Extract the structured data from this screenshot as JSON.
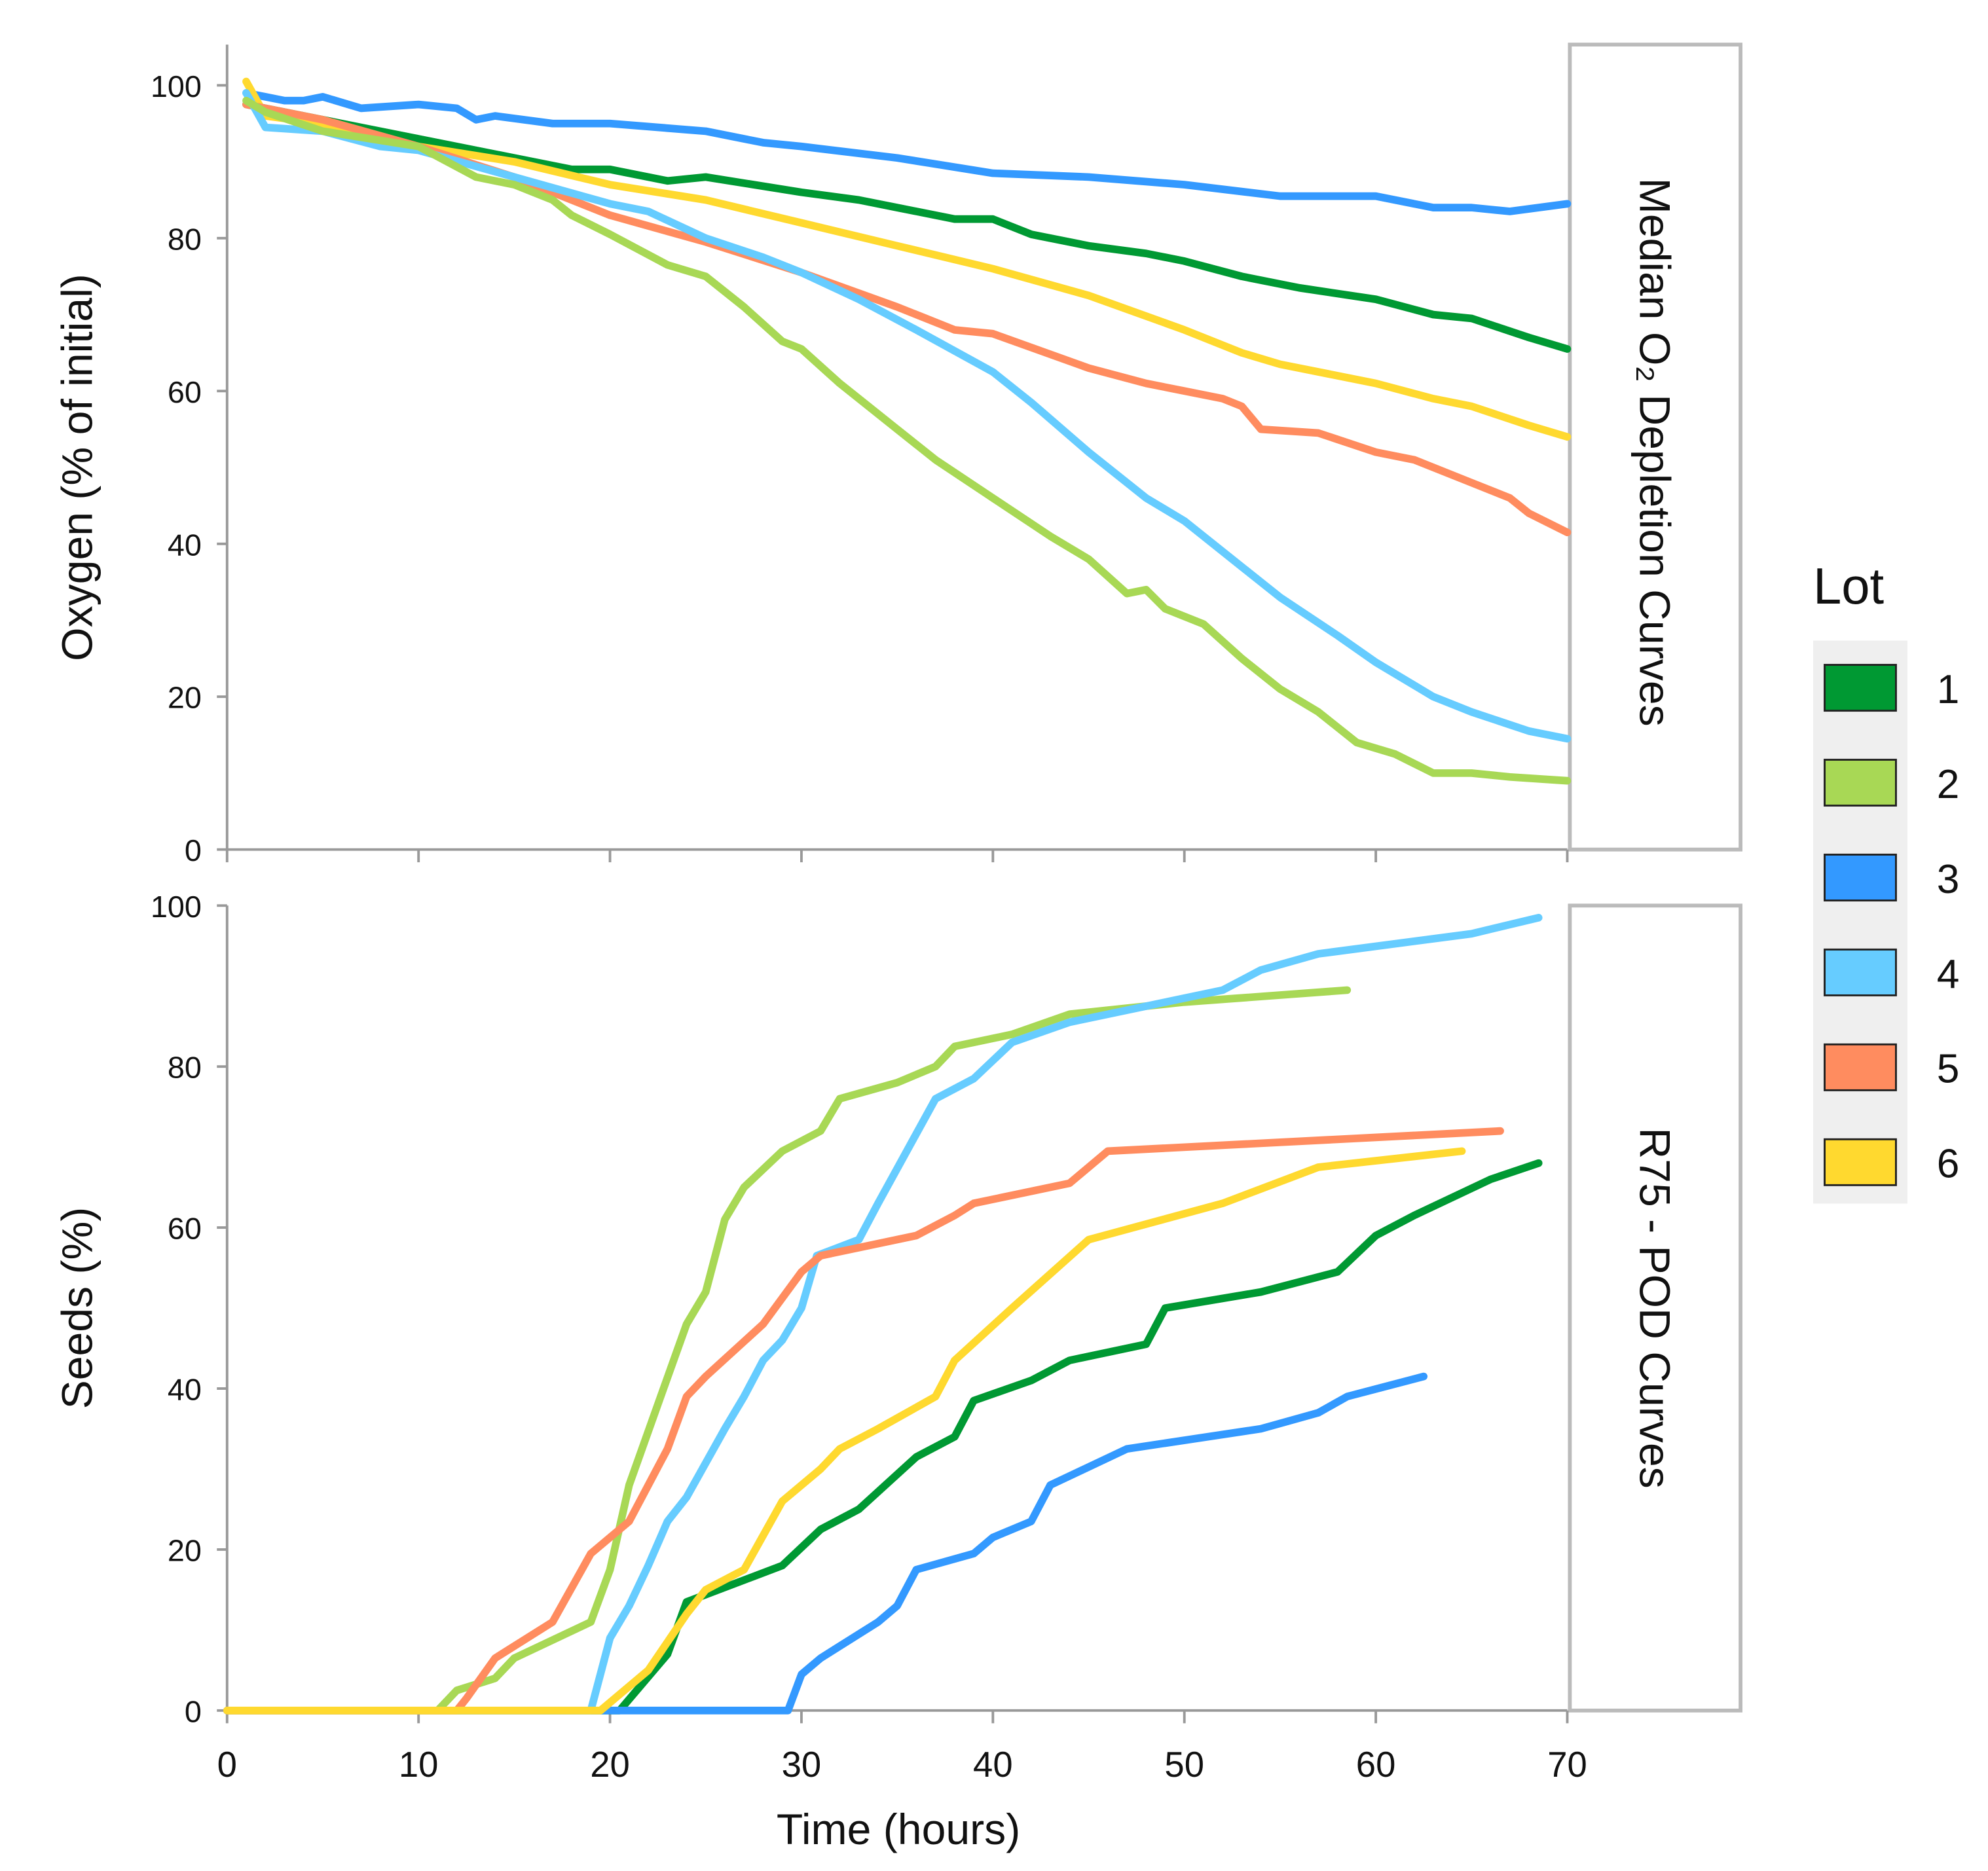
{
  "chart_data": [
    {
      "type": "line",
      "title": "Median O₂ Depletion Curves",
      "xlabel": "Time (hours)",
      "ylabel": "Oxygen (% of initial)",
      "xlim": [
        0,
        70
      ],
      "ylim": [
        0,
        100
      ],
      "xticks": [
        0,
        10,
        20,
        30,
        40,
        50,
        60,
        70
      ],
      "yticks": [
        "0",
        "20",
        "40",
        "60",
        "80",
        "100"
      ],
      "series": [
        {
          "name": "3",
          "points": [
            [
              1,
              99
            ],
            [
              2,
              98.5
            ],
            [
              3,
              98
            ],
            [
              4,
              98
            ],
            [
              5,
              98.5
            ],
            [
              7,
              97
            ],
            [
              10,
              97.5
            ],
            [
              12,
              97
            ],
            [
              13,
              95.5
            ],
            [
              14,
              96
            ],
            [
              17,
              95
            ],
            [
              20,
              95
            ],
            [
              25,
              94
            ],
            [
              28,
              92.5
            ],
            [
              30,
              92
            ],
            [
              35,
              90.5
            ],
            [
              40,
              88.5
            ],
            [
              45,
              88
            ],
            [
              50,
              87
            ],
            [
              55,
              85.5
            ],
            [
              60,
              85.5
            ],
            [
              63,
              84
            ],
            [
              65,
              84
            ],
            [
              67,
              83.5
            ],
            [
              70,
              84.5
            ]
          ]
        },
        {
          "name": "1",
          "points": [
            [
              1,
              97.5
            ],
            [
              5,
              95.5
            ],
            [
              10,
              93
            ],
            [
              15,
              90.5
            ],
            [
              18,
              89
            ],
            [
              20,
              89
            ],
            [
              23,
              87.5
            ],
            [
              25,
              88
            ],
            [
              30,
              86
            ],
            [
              33,
              85
            ],
            [
              35,
              84
            ],
            [
              38,
              82.5
            ],
            [
              40,
              82.5
            ],
            [
              42,
              80.5
            ],
            [
              45,
              79
            ],
            [
              48,
              78
            ],
            [
              50,
              77
            ],
            [
              53,
              75
            ],
            [
              56,
              73.5
            ],
            [
              60,
              72
            ],
            [
              63,
              70
            ],
            [
              65,
              69.5
            ],
            [
              68,
              67
            ],
            [
              70,
              65.5
            ]
          ]
        },
        {
          "name": "6",
          "points": [
            [
              1,
              100.5
            ],
            [
              2,
              96
            ],
            [
              5,
              95
            ],
            [
              10,
              92
            ],
            [
              15,
              90
            ],
            [
              20,
              87
            ],
            [
              25,
              85
            ],
            [
              30,
              82
            ],
            [
              35,
              79
            ],
            [
              40,
              76
            ],
            [
              45,
              72.5
            ],
            [
              50,
              68
            ],
            [
              53,
              65
            ],
            [
              55,
              63.5
            ],
            [
              60,
              61
            ],
            [
              63,
              59
            ],
            [
              65,
              58
            ],
            [
              68,
              55.5
            ],
            [
              70,
              54
            ]
          ]
        },
        {
          "name": "5",
          "points": [
            [
              1,
              97.5
            ],
            [
              5,
              95.5
            ],
            [
              10,
              92
            ],
            [
              15,
              88
            ],
            [
              20,
              83
            ],
            [
              25,
              79.5
            ],
            [
              30,
              75.5
            ],
            [
              35,
              71
            ],
            [
              38,
              68
            ],
            [
              40,
              67.5
            ],
            [
              45,
              63
            ],
            [
              48,
              61
            ],
            [
              50,
              60
            ],
            [
              52,
              59
            ],
            [
              53,
              58
            ],
            [
              54,
              55
            ],
            [
              57,
              54.5
            ],
            [
              60,
              52
            ],
            [
              62,
              51
            ],
            [
              65,
              48
            ],
            [
              67,
              46
            ],
            [
              68,
              44
            ],
            [
              70,
              41.5
            ]
          ]
        },
        {
          "name": "4",
          "points": [
            [
              1,
              99
            ],
            [
              2,
              94.5
            ],
            [
              5,
              94
            ],
            [
              8,
              92
            ],
            [
              10,
              91.5
            ],
            [
              15,
              88
            ],
            [
              20,
              84.5
            ],
            [
              22,
              83.5
            ],
            [
              25,
              80
            ],
            [
              28,
              77.5
            ],
            [
              30,
              75.5
            ],
            [
              33,
              72
            ],
            [
              36,
              68
            ],
            [
              40,
              62.5
            ],
            [
              42,
              58.5
            ],
            [
              45,
              52
            ],
            [
              48,
              46
            ],
            [
              50,
              43
            ],
            [
              53,
              37
            ],
            [
              55,
              33
            ],
            [
              58,
              28
            ],
            [
              60,
              24.5
            ],
            [
              63,
              20
            ],
            [
              65,
              18
            ],
            [
              68,
              15.5
            ],
            [
              70,
              14.5
            ]
          ]
        },
        {
          "name": "2",
          "points": [
            [
              1,
              98
            ],
            [
              2,
              96.5
            ],
            [
              5,
              94
            ],
            [
              10,
              92
            ],
            [
              13,
              88
            ],
            [
              15,
              87
            ],
            [
              17,
              85
            ],
            [
              18,
              83
            ],
            [
              20,
              80.5
            ],
            [
              23,
              76.5
            ],
            [
              25,
              75
            ],
            [
              27,
              71
            ],
            [
              29,
              66.5
            ],
            [
              30,
              65.5
            ],
            [
              32,
              61
            ],
            [
              35,
              55
            ],
            [
              37,
              51
            ],
            [
              40,
              46
            ],
            [
              43,
              41
            ],
            [
              45,
              38
            ],
            [
              47,
              33.5
            ],
            [
              48,
              34
            ],
            [
              49,
              31.5
            ],
            [
              51,
              29.5
            ],
            [
              53,
              25
            ],
            [
              55,
              21
            ],
            [
              57,
              18
            ],
            [
              59,
              14
            ],
            [
              61,
              12.5
            ],
            [
              63,
              10
            ],
            [
              65,
              10
            ],
            [
              67,
              9.5
            ],
            [
              70,
              9
            ]
          ]
        }
      ]
    },
    {
      "type": "line",
      "title": "R75 - POD Curves",
      "xlabel": "Time (hours)",
      "ylabel": "Seeds (%)",
      "xlim": [
        0,
        70
      ],
      "ylim": [
        0,
        100
      ],
      "xticks": [
        "0",
        "10",
        "20",
        "30",
        "40",
        "50",
        "60",
        "70"
      ],
      "yticks": [
        "0",
        "20",
        "40",
        "60",
        "80",
        "100"
      ],
      "series": [
        {
          "name": "1",
          "points": [
            [
              0,
              0
            ],
            [
              20.5,
              0
            ],
            [
              23,
              7
            ],
            [
              24,
              13.5
            ],
            [
              29,
              18
            ],
            [
              31,
              22.5
            ],
            [
              33,
              25
            ],
            [
              36,
              31.5
            ],
            [
              38,
              34
            ],
            [
              39,
              38.5
            ],
            [
              42,
              41
            ],
            [
              44,
              43.5
            ],
            [
              48,
              45.5
            ],
            [
              49,
              50
            ],
            [
              54,
              52
            ],
            [
              58,
              54.5
            ],
            [
              60,
              59
            ],
            [
              62,
              61.5
            ],
            [
              66,
              66
            ],
            [
              68.5,
              68
            ]
          ]
        },
        {
          "name": "2",
          "points": [
            [
              0,
              0
            ],
            [
              11,
              0
            ],
            [
              12,
              2.5
            ],
            [
              14,
              4
            ],
            [
              15,
              6.5
            ],
            [
              19,
              11
            ],
            [
              20,
              17.5
            ],
            [
              21,
              28
            ],
            [
              22.5,
              38
            ],
            [
              24,
              48
            ],
            [
              25,
              52
            ],
            [
              26,
              61
            ],
            [
              27,
              65
            ],
            [
              29,
              69.5
            ],
            [
              31,
              72
            ],
            [
              32,
              76
            ],
            [
              35,
              78
            ],
            [
              37,
              80
            ],
            [
              38,
              82.5
            ],
            [
              41,
              84
            ],
            [
              44,
              86.5
            ],
            [
              50,
              88
            ],
            [
              58.5,
              89.5
            ]
          ]
        },
        {
          "name": "3",
          "points": [
            [
              0,
              0
            ],
            [
              29.3,
              0
            ],
            [
              30,
              4.5
            ],
            [
              31,
              6.5
            ],
            [
              34,
              11
            ],
            [
              35,
              13
            ],
            [
              36,
              17.5
            ],
            [
              39,
              19.5
            ],
            [
              40,
              21.5
            ],
            [
              42,
              23.5
            ],
            [
              43,
              28
            ],
            [
              47,
              32.5
            ],
            [
              54,
              35
            ],
            [
              57,
              37
            ],
            [
              58.5,
              39
            ],
            [
              62.5,
              41.5
            ]
          ]
        },
        {
          "name": "4",
          "points": [
            [
              0,
              0
            ],
            [
              19,
              0
            ],
            [
              20,
              9
            ],
            [
              21,
              13
            ],
            [
              22,
              18
            ],
            [
              23,
              23.5
            ],
            [
              24,
              26.5
            ],
            [
              26,
              35
            ],
            [
              27,
              39
            ],
            [
              28,
              43.5
            ],
            [
              29,
              46
            ],
            [
              30,
              50
            ],
            [
              30.8,
              56.5
            ],
            [
              33,
              58.5
            ],
            [
              34,
              63
            ],
            [
              37,
              76
            ],
            [
              39,
              78.5
            ],
            [
              41,
              83
            ],
            [
              44,
              85.5
            ],
            [
              50,
              88.5
            ],
            [
              52,
              89.5
            ],
            [
              54,
              92
            ],
            [
              57,
              94
            ],
            [
              65,
              96.5
            ],
            [
              68.5,
              98.5
            ]
          ]
        },
        {
          "name": "5",
          "points": [
            [
              0,
              0
            ],
            [
              12,
              0
            ],
            [
              12.5,
              1.5
            ],
            [
              14,
              6.5
            ],
            [
              17,
              11
            ],
            [
              19,
              19.5
            ],
            [
              21,
              23.5
            ],
            [
              23,
              32.5
            ],
            [
              24,
              39
            ],
            [
              25,
              41.5
            ],
            [
              28,
              48
            ],
            [
              30,
              54.5
            ],
            [
              31,
              56.5
            ],
            [
              36,
              59
            ],
            [
              38,
              61.5
            ],
            [
              39,
              63
            ],
            [
              44,
              65.5
            ],
            [
              46,
              69.5
            ],
            [
              66.5,
              72
            ]
          ]
        },
        {
          "name": "6",
          "points": [
            [
              0,
              0
            ],
            [
              19.5,
              0
            ],
            [
              22,
              5
            ],
            [
              24,
              12
            ],
            [
              25,
              15
            ],
            [
              27,
              17.5
            ],
            [
              29,
              26
            ],
            [
              31,
              30
            ],
            [
              32,
              32.5
            ],
            [
              34,
              35
            ],
            [
              37,
              39
            ],
            [
              38,
              43.5
            ],
            [
              41,
              50
            ],
            [
              45,
              58.5
            ],
            [
              52,
              63
            ],
            [
              57,
              67.5
            ],
            [
              64.5,
              69.5
            ]
          ]
        }
      ]
    }
  ],
  "legend": {
    "title": "Lot",
    "placement": "right",
    "items": [
      {
        "label": "1",
        "color": "#009933"
      },
      {
        "label": "2",
        "color": "#a8d855"
      },
      {
        "label": "3",
        "color": "#3399ff"
      },
      {
        "label": "4",
        "color": "#66ccff"
      },
      {
        "label": "5",
        "color": "#ff8c5f"
      },
      {
        "label": "6",
        "color": "#ffd92f"
      }
    ]
  }
}
